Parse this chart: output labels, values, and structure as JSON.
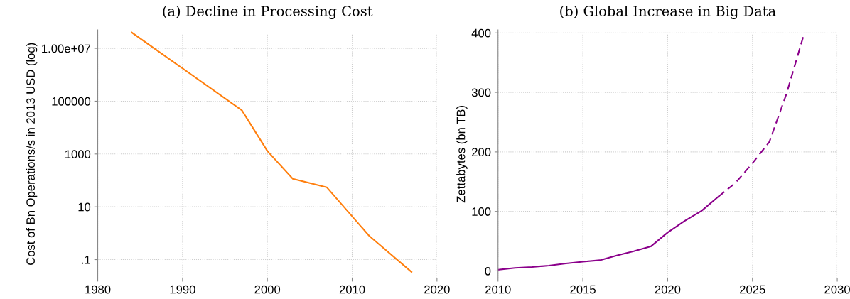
{
  "chart_data": [
    {
      "type": "line",
      "title": "(a) Decline in Processing Cost",
      "ylabel": "Cost of Bn Operations/s in 2013 USD (log)",
      "log": "y",
      "grid": true,
      "line_style": "solid",
      "marker": "none",
      "x": [
        1984,
        1997,
        2000,
        2003,
        2007,
        2012,
        2017
      ],
      "series": [
        {
          "color": "#ff7f0e",
          "values": [
            40000000,
            45000,
            1300,
            115,
            55,
            0.8,
            0.034
          ]
        }
      ],
      "xlim": [
        1980,
        2020
      ],
      "xticks": [
        1980,
        1990,
        2000,
        2010,
        2020
      ],
      "ylim": [
        0.02,
        50000000
      ],
      "yticks": [
        {
          "value": 0.1,
          "label": ".1"
        },
        10,
        1000,
        100000,
        {
          "value": 10000000,
          "label": "1.00e+07"
        }
      ]
    },
    {
      "type": "line",
      "title": "(b) Global Increase in Big Data",
      "ylabel": "Zettabytes (bn TB)",
      "grid": true,
      "marker": "none",
      "series": [
        {
          "color": "#8b008b",
          "line_style": "solid",
          "x": [
            2010,
            2011,
            2012,
            2013,
            2014,
            2015,
            2016,
            2017,
            2018,
            2019,
            2020,
            2021,
            2022,
            2023
          ],
          "values": [
            2,
            5,
            6.5,
            9,
            12.5,
            15.5,
            18,
            26,
            33,
            41,
            64.5,
            84,
            101,
            125
          ]
        },
        {
          "color": "#8b008b",
          "line_style": "dashed",
          "x": [
            2023,
            2024,
            2025,
            2026,
            2027,
            2028
          ],
          "values": [
            125,
            148,
            181,
            217,
            297,
            394
          ]
        }
      ],
      "xlim": [
        2010,
        2030
      ],
      "xticks": [
        2010,
        2015,
        2020,
        2025,
        2030
      ],
      "ylim": [
        -12,
        405
      ],
      "yticks": [
        0,
        100,
        200,
        300,
        400
      ]
    }
  ]
}
